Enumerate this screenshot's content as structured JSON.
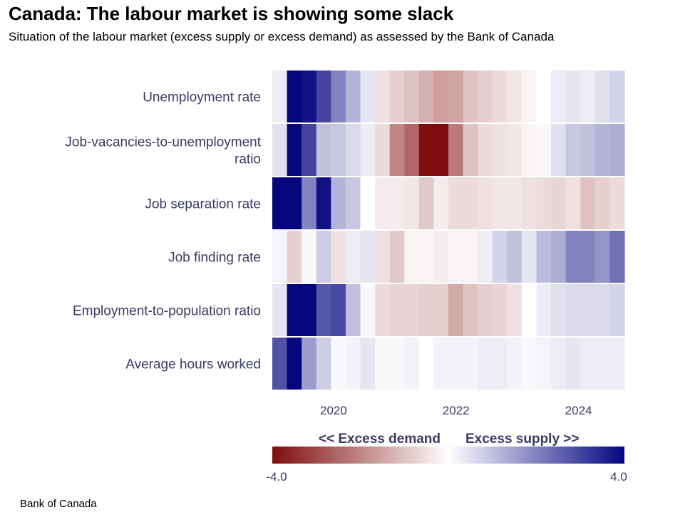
{
  "title": "Canada: The labour market is showing some slack",
  "subtitle": "Situation of the labour market (excess supply or excess demand) as assessed by the Bank of Canada",
  "source": "Bank of Canada",
  "chart_data": {
    "type": "heatmap",
    "title": "Canada: The labour market is showing some slack",
    "rows": [
      {
        "label": "Unemployment rate",
        "lines": [
          "Unemployment rate"
        ],
        "values": [
          0.3,
          4.0,
          3.8,
          3.0,
          2.0,
          1.2,
          0.4,
          -0.5,
          -0.8,
          -1.0,
          -1.3,
          -1.6,
          -1.5,
          -1.0,
          -0.8,
          -0.6,
          -0.4,
          -0.2,
          0.0,
          0.3,
          0.4,
          0.3,
          0.5,
          0.7
        ]
      },
      {
        "label": "Job-vacancies-to-unemployment ratio",
        "lines": [
          "Job-vacancies-to-unemployment",
          "ratio"
        ],
        "values": [
          0.5,
          4.0,
          3.0,
          1.0,
          0.9,
          0.6,
          0.3,
          -0.6,
          -2.0,
          -2.5,
          -4.0,
          -4.0,
          -2.2,
          -1.0,
          -0.6,
          -0.5,
          -0.4,
          -0.2,
          0.1,
          0.5,
          0.9,
          1.0,
          1.2,
          1.3
        ]
      },
      {
        "label": "Job separation rate",
        "lines": [
          "Job separation rate"
        ],
        "values": [
          4.0,
          4.0,
          2.0,
          3.8,
          1.2,
          0.9,
          0.0,
          -0.3,
          -0.3,
          -0.4,
          -0.9,
          -0.3,
          -0.6,
          -0.6,
          -0.5,
          -0.4,
          -0.4,
          -0.5,
          -0.6,
          -0.7,
          -0.5,
          -1.0,
          -0.8,
          -0.6
        ]
      },
      {
        "label": "Job finding rate",
        "lines": [
          "Job finding rate"
        ],
        "values": [
          0.2,
          -0.8,
          0.1,
          0.8,
          -0.5,
          0.3,
          0.4,
          -0.5,
          -0.9,
          -0.2,
          -0.2,
          -0.3,
          -0.2,
          -0.2,
          0.3,
          0.7,
          1.0,
          0.4,
          1.1,
          1.3,
          2.0,
          2.0,
          1.7,
          2.3
        ]
      },
      {
        "label": "Employment-to-population ratio",
        "lines": [
          "Employment-to-population ratio"
        ],
        "values": [
          0.4,
          4.0,
          4.0,
          2.7,
          2.9,
          1.0,
          0.1,
          -0.6,
          -0.7,
          -0.7,
          -0.8,
          -0.8,
          -1.4,
          -1.0,
          -0.8,
          -0.7,
          -0.5,
          0.0,
          0.3,
          0.5,
          0.6,
          0.6,
          0.6,
          0.7
        ]
      },
      {
        "label": "Average hours worked",
        "lines": [
          "Average hours worked"
        ],
        "values": [
          2.8,
          4.0,
          1.6,
          0.8,
          0.1,
          0.2,
          0.4,
          0.1,
          0.1,
          0.2,
          0.0,
          0.2,
          0.2,
          0.2,
          0.3,
          0.3,
          0.2,
          0.1,
          0.2,
          0.3,
          0.4,
          0.3,
          0.3,
          0.3
        ]
      }
    ],
    "x_axis": {
      "start": 2019.0,
      "end": 2024.75,
      "ticks": [
        2020,
        2022,
        2024
      ]
    },
    "color_scale": {
      "min": -4.0,
      "max": 4.0,
      "min_label": "-4.0",
      "max_label": "4.0",
      "negative_color": "#7f0d0d",
      "mid_color": "#ffffff",
      "positive_color": "#06067f"
    },
    "legend": {
      "left": "<< Excess demand",
      "right": "Excess supply >>"
    }
  }
}
